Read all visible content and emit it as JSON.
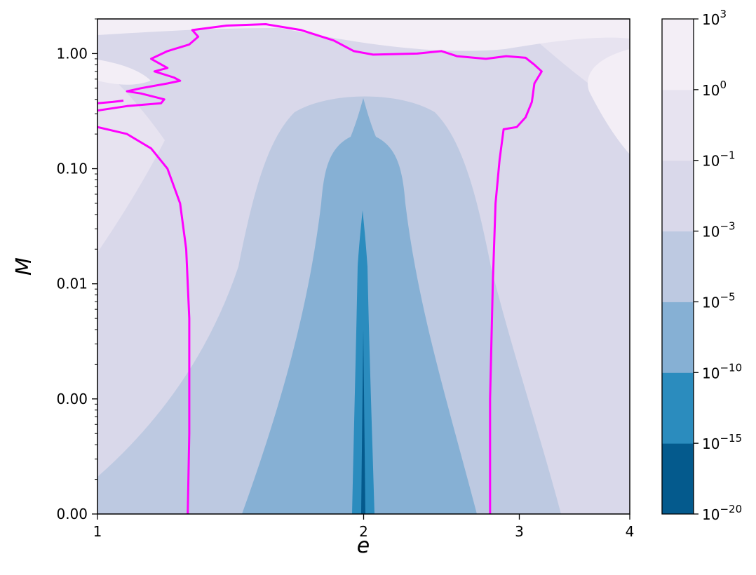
{
  "chart_data": {
    "type": "heatmap",
    "title": "",
    "xlabel": "e",
    "ylabel": "M",
    "x_scale": "log",
    "xlim": [
      1,
      4
    ],
    "x_ticks": [
      {
        "value": 1,
        "label": "1"
      },
      {
        "value": 2,
        "label": "2"
      },
      {
        "value": 3,
        "label": "3"
      },
      {
        "value": 4,
        "label": "4"
      }
    ],
    "y_scale": "log",
    "ylim": [
      0.0001,
      2
    ],
    "y_ticks": [
      {
        "value": 1.0,
        "label": "1.00"
      },
      {
        "value": 0.1,
        "label": "0.10"
      },
      {
        "value": 0.01,
        "label": "0.01"
      },
      {
        "value": 0.001,
        "label": "0.00"
      },
      {
        "value": 0.0001,
        "label": "0.00"
      }
    ],
    "colorbar": {
      "scale": "log",
      "levels_exponent": [
        -20,
        -15,
        -10,
        -5,
        -3,
        -1,
        0,
        3
      ],
      "tick_base": "10",
      "colors": [
        "#045a8d",
        "#2b8cbe",
        "#86b0d4",
        "#bdc9e1",
        "#d9d8ea",
        "#e7e3f0",
        "#f3eef6"
      ]
    },
    "boundary_line": {
      "color": "#ff00ff",
      "segments": [
        {
          "points": [
            [
              1.0,
              0.23
            ],
            [
              1.08,
              0.2
            ],
            [
              1.15,
              0.15
            ],
            [
              1.2,
              0.1
            ],
            [
              1.24,
              0.05
            ],
            [
              1.26,
              0.02
            ],
            [
              1.27,
              0.005
            ],
            [
              1.27,
              0.0005
            ],
            [
              1.265,
              0.0001
            ]
          ]
        },
        {
          "points": [
            [
              1.0,
              0.32
            ],
            [
              1.08,
              0.35
            ],
            [
              1.18,
              0.37
            ],
            [
              1.19,
              0.4
            ],
            [
              1.12,
              0.45
            ],
            [
              1.08,
              0.47
            ],
            [
              1.12,
              0.5
            ],
            [
              1.2,
              0.55
            ],
            [
              1.24,
              0.58
            ],
            [
              1.22,
              0.62
            ],
            [
              1.16,
              0.7
            ],
            [
              1.2,
              0.75
            ],
            [
              1.15,
              0.9
            ],
            [
              1.2,
              1.05
            ],
            [
              1.27,
              1.2
            ],
            [
              1.3,
              1.4
            ],
            [
              1.28,
              1.6
            ],
            [
              1.4,
              1.75
            ],
            [
              1.55,
              1.8
            ],
            [
              1.7,
              1.6
            ],
            [
              1.85,
              1.3
            ],
            [
              1.95,
              1.05
            ],
            [
              2.05,
              0.98
            ],
            [
              2.3,
              1.0
            ],
            [
              2.45,
              1.05
            ],
            [
              2.55,
              0.95
            ],
            [
              2.75,
              0.9
            ],
            [
              2.9,
              0.95
            ],
            [
              3.05,
              0.92
            ],
            [
              3.12,
              0.8
            ],
            [
              3.18,
              0.7
            ],
            [
              3.12,
              0.55
            ],
            [
              3.1,
              0.38
            ],
            [
              3.05,
              0.28
            ],
            [
              2.98,
              0.23
            ],
            [
              2.88,
              0.22
            ],
            [
              2.85,
              0.12
            ],
            [
              2.82,
              0.05
            ],
            [
              2.8,
              0.01
            ],
            [
              2.78,
              0.001
            ],
            [
              2.78,
              0.0001
            ]
          ]
        },
        {
          "points": [
            [
              1.0,
              0.37
            ],
            [
              1.04,
              0.38
            ],
            [
              1.07,
              0.39
            ]
          ]
        }
      ]
    }
  }
}
